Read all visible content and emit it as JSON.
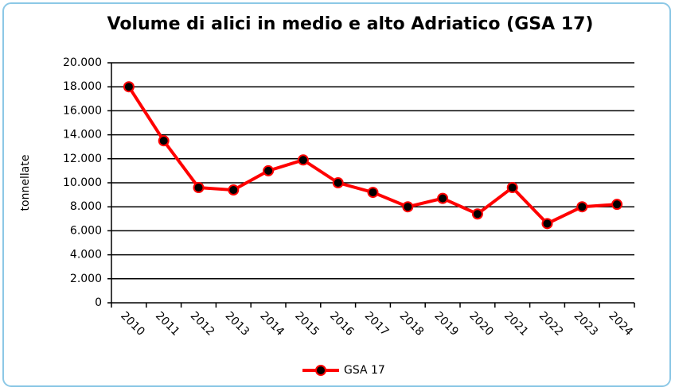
{
  "chart_data": {
    "type": "line",
    "title": "Volume di alici in medio e alto Adriatico (GSA 17)",
    "y_label": "tonnellate",
    "categories": [
      "2010",
      "2011",
      "2012",
      "2013",
      "2014",
      "2015",
      "2016",
      "2017",
      "2018",
      "2019",
      "2020",
      "2021",
      "2022",
      "2023",
      "2024"
    ],
    "series": [
      {
        "name": "GSA 17",
        "color": "#ff0000",
        "marker_color": "#000000",
        "values": [
          18000,
          13500,
          9600,
          9400,
          11000,
          11900,
          10000,
          9200,
          8000,
          8700,
          7400,
          9600,
          6600,
          8000,
          8200
        ]
      }
    ],
    "ylim": [
      0,
      20000
    ],
    "yticks": [
      0,
      {
        "value": 2000,
        "label": "2.000"
      },
      {
        "value": 4000,
        "label": "4.000"
      },
      {
        "value": 6000,
        "label": "6.000"
      },
      {
        "value": 8000,
        "label": "8.000"
      },
      {
        "value": 10000,
        "label": "10.000"
      },
      {
        "value": 12000,
        "label": "12.000"
      },
      {
        "value": 14000,
        "label": "14.000"
      },
      {
        "value": 16000,
        "label": "16.000"
      },
      {
        "value": 18000,
        "label": "18.000"
      },
      {
        "value": 20000,
        "label": "20.000"
      }
    ],
    "grid": true,
    "legend": "bottom"
  }
}
